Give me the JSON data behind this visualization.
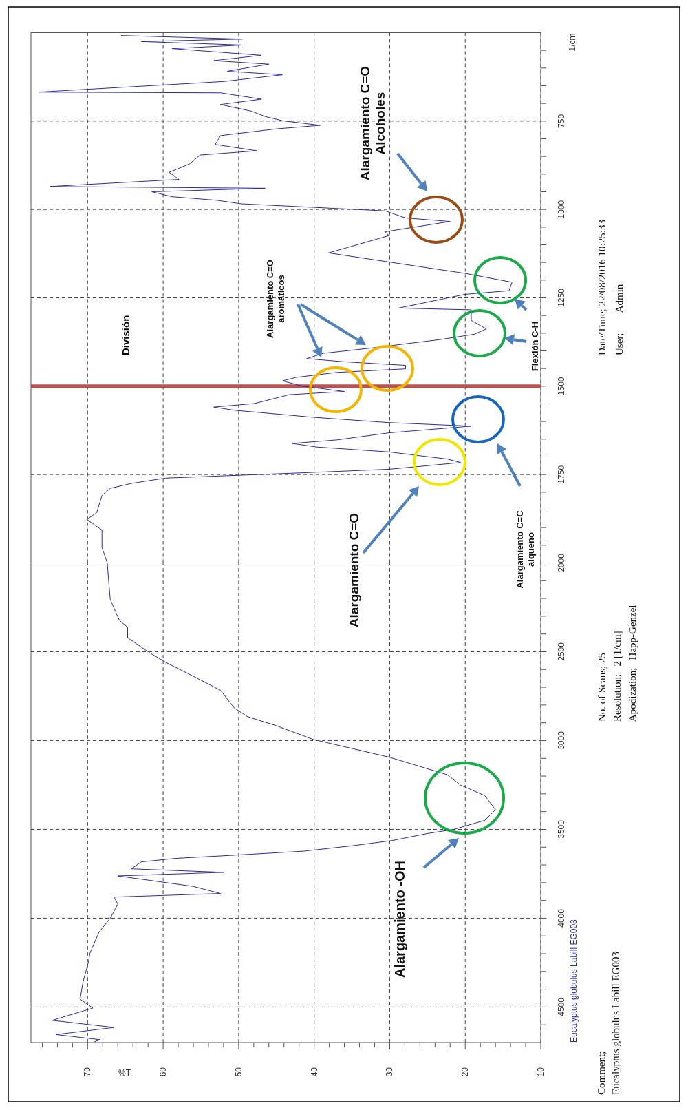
{
  "chart_data": [
    {
      "type": "line",
      "xlabel": "%T",
      "ylim": [
        4700,
        2000
      ],
      "xlim": [
        77.5,
        10
      ],
      "yticks": [
        {
          "value": 4600,
          "label": null
        },
        4500,
        {
          "value": 4400,
          "label": null
        },
        {
          "value": 4300,
          "label": null
        },
        {
          "value": 4200,
          "label": null
        },
        {
          "value": 4100,
          "label": null
        },
        4000,
        {
          "value": 3900,
          "label": null
        },
        {
          "value": 3800,
          "label": null
        },
        {
          "value": 3700,
          "label": null
        },
        {
          "value": 3600,
          "label": null
        },
        3500,
        {
          "value": 3400,
          "label": null
        },
        {
          "value": 3300,
          "label": null
        },
        {
          "value": 3200,
          "label": null
        },
        {
          "value": 3100,
          "label": null
        },
        3000,
        {
          "value": 2900,
          "label": null
        },
        {
          "value": 2800,
          "label": null
        },
        {
          "value": 2700,
          "label": null
        },
        {
          "value": 2600,
          "label": null
        },
        2500,
        {
          "value": 2400,
          "label": null
        },
        {
          "value": 2300,
          "label": null
        },
        {
          "value": 2200,
          "label": null
        },
        {
          "value": 2100,
          "label": null
        }
      ],
      "xticks": [
        {
          "value": 76,
          "label": null
        },
        {
          "value": 74,
          "label": null
        },
        {
          "value": 72,
          "label": null
        },
        70,
        {
          "value": 68,
          "label": null
        },
        {
          "value": 66,
          "label": null
        },
        {
          "value": 64,
          "label": null
        },
        {
          "value": 62,
          "label": null
        },
        60,
        {
          "value": 58,
          "label": null
        },
        {
          "value": 56,
          "label": null
        },
        {
          "value": 54,
          "label": null
        },
        {
          "value": 52,
          "label": null
        },
        50,
        {
          "value": 48,
          "label": null
        },
        {
          "value": 46,
          "label": null
        },
        {
          "value": 44,
          "label": null
        },
        {
          "value": 42,
          "label": null
        },
        40,
        {
          "value": 38,
          "label": null
        },
        {
          "value": 36,
          "label": null
        },
        {
          "value": 34,
          "label": null
        },
        {
          "value": 32,
          "label": null
        },
        30,
        {
          "value": 28,
          "label": null
        },
        {
          "value": 26,
          "label": null
        },
        {
          "value": 24,
          "label": null
        },
        {
          "value": 22,
          "label": null
        },
        20,
        {
          "value": 18,
          "label": null
        },
        {
          "value": 16,
          "label": null
        },
        {
          "value": 14,
          "label": null
        },
        {
          "value": 12,
          "label": null
        },
        10
      ],
      "grid": true,
      "series": [
        {
          "name": "Eucalyptus globulus Labill EG003",
          "color": "#2a2aa8",
          "values": [
            2000,
            2108,
            2206,
            2323,
            2363,
            2421,
            2500,
            2559,
            2638,
            2717,
            2816,
            2866,
            2915,
            2994,
            3093,
            3192,
            3251,
            3310,
            3389,
            3449,
            3500,
            3524,
            3563,
            3593,
            3623,
            3643,
            3663,
            3683,
            3722,
            3742,
            3762,
            3821,
            3861,
            3881,
            3921,
            4000,
            4079,
            4198,
            4248,
            4357,
            4456,
            4506,
            4575,
            4615,
            4655,
            4684,
            4695
          ],
          "x": [
            67.4,
            67.2,
            67.0,
            65.8,
            64.7,
            64.7,
            62.0,
            59.7,
            56.0,
            52.4,
            50.6,
            48.8,
            45.1,
            40.1,
            30.1,
            22.4,
            20.6,
            17.4,
            16.0,
            17.4,
            21.5,
            25.1,
            29.7,
            35.1,
            41.5,
            49.7,
            58.3,
            62.9,
            64.2,
            52.0,
            66.0,
            56.0,
            52.4,
            66.5,
            66.0,
            67.0,
            68.5,
            69.7,
            69.9,
            70.6,
            71.0,
            69.3,
            74.7,
            66.5,
            74.2,
            68.3,
            69.1
          ]
        }
      ],
      "annotations": [
        "Alargamiento -OH",
        "Comment;\nEucalyptus globulus Labill EG003",
        "No. of Scans; 25\nResolution;   2 [1/cm]\nApodization;   Happ-Genzel"
      ]
    },
    {
      "type": "line",
      "ylabel": "1/cm",
      "ylim": [
        2000,
        500
      ],
      "xlim": [
        77.5,
        10
      ],
      "tick_labels": "y",
      "yticks": [
        2000,
        {
          "value": 1950,
          "label": null
        },
        {
          "value": 1900,
          "label": null
        },
        {
          "value": 1850,
          "label": null
        },
        {
          "value": 1800,
          "label": null
        },
        1750,
        {
          "value": 1700,
          "label": null
        },
        {
          "value": 1650,
          "label": null
        },
        {
          "value": 1600,
          "label": null
        },
        {
          "value": 1550,
          "label": null
        },
        1500,
        {
          "value": 1450,
          "label": null
        },
        {
          "value": 1400,
          "label": null
        },
        {
          "value": 1350,
          "label": null
        },
        {
          "value": 1300,
          "label": null
        },
        1250,
        {
          "value": 1200,
          "label": null
        },
        {
          "value": 1150,
          "label": null
        },
        {
          "value": 1100,
          "label": null
        },
        {
          "value": 1050,
          "label": null
        },
        1000,
        {
          "value": 950,
          "label": null
        },
        {
          "value": 900,
          "label": null
        },
        {
          "value": 850,
          "label": null
        },
        {
          "value": 800,
          "label": null
        },
        750,
        {
          "value": 700,
          "label": null
        },
        {
          "value": 650,
          "label": null
        },
        {
          "value": 600,
          "label": null
        },
        {
          "value": 550,
          "label": null
        }
      ],
      "xticks": [
        70,
        60,
        50,
        40,
        30,
        20,
        10
      ],
      "grid": true,
      "series": [
        {
          "color": "#2a2aa8",
          "values": [
            508,
            518,
            525,
            535,
            545,
            564,
            579,
            589,
            609,
            619,
            638,
            668,
            670,
            688,
            703,
            722,
            737,
            749,
            762,
            772,
            791,
            816,
            834,
            846,
            871,
            895,
            915,
            935,
            940,
            950,
            964,
            974,
            984,
            994,
            1004,
            1024,
            1034,
            1063,
            1074,
            1123,
            1181,
            1206,
            1230,
            1240,
            1279,
            1284,
            1314,
            1338,
            1353,
            1368,
            1392,
            1407,
            1422,
            1431,
            1441,
            1451,
            1461,
            1475,
            1485,
            1500,
            1515,
            1524,
            1549,
            1559,
            1568,
            1588,
            1603,
            1613,
            1632,
            1652,
            1662,
            1672,
            1686,
            1706,
            1716,
            1725,
            1735,
            1745,
            1760,
            1775,
            1789,
            1809,
            1858,
            1877,
            1907,
            1956,
            2000
          ],
          "x": [
            65.6,
            49.5,
            62.9,
            49.5,
            58.8,
            47.0,
            53.3,
            46.0,
            51.5,
            44.2,
            52.0,
            76.5,
            52.4,
            47.0,
            52.4,
            48.3,
            46.5,
            44.2,
            39.2,
            45.0,
            52.4,
            53.1,
            47.6,
            55.1,
            56.5,
            59.2,
            57.9,
            75.0,
            46.5,
            61.5,
            58.8,
            52.9,
            49.7,
            40.1,
            30.6,
            27.9,
            22.0,
            30.6,
            30.1,
            38.1,
            20.0,
            13.8,
            14.2,
            20.0,
            28.8,
            19.2,
            19.2,
            17.2,
            18.8,
            23.3,
            32.4,
            38.8,
            41.0,
            36.0,
            27.9,
            27.9,
            37.0,
            42.4,
            44.2,
            41.5,
            36.0,
            43.3,
            47.9,
            53.3,
            50.6,
            40.1,
            30.1,
            19.2,
            30.1,
            37.0,
            42.9,
            39.7,
            30.1,
            22.4,
            20.6,
            25.1,
            30.1,
            41.5,
            59.7,
            64.2,
            67.0,
            68.1,
            68.8,
            70.1,
            68.1,
            68.1,
            67.4
          ]
        }
      ],
      "ref_lines": [
        {
          "axis": "y",
          "value": 1500,
          "label": "División",
          "color": "#c0504d"
        }
      ],
      "annotations": [
        "Alargamiento C=O\nAlcoholes",
        "Alargamiento C=O\naromáticos",
        "Flexión C-H",
        "Alargamiento C=C\nalqueno",
        "Alargamiento C=O",
        "Date/Time; 22/08/2016 10:25:33\nUser;        Admin"
      ]
    }
  ]
}
